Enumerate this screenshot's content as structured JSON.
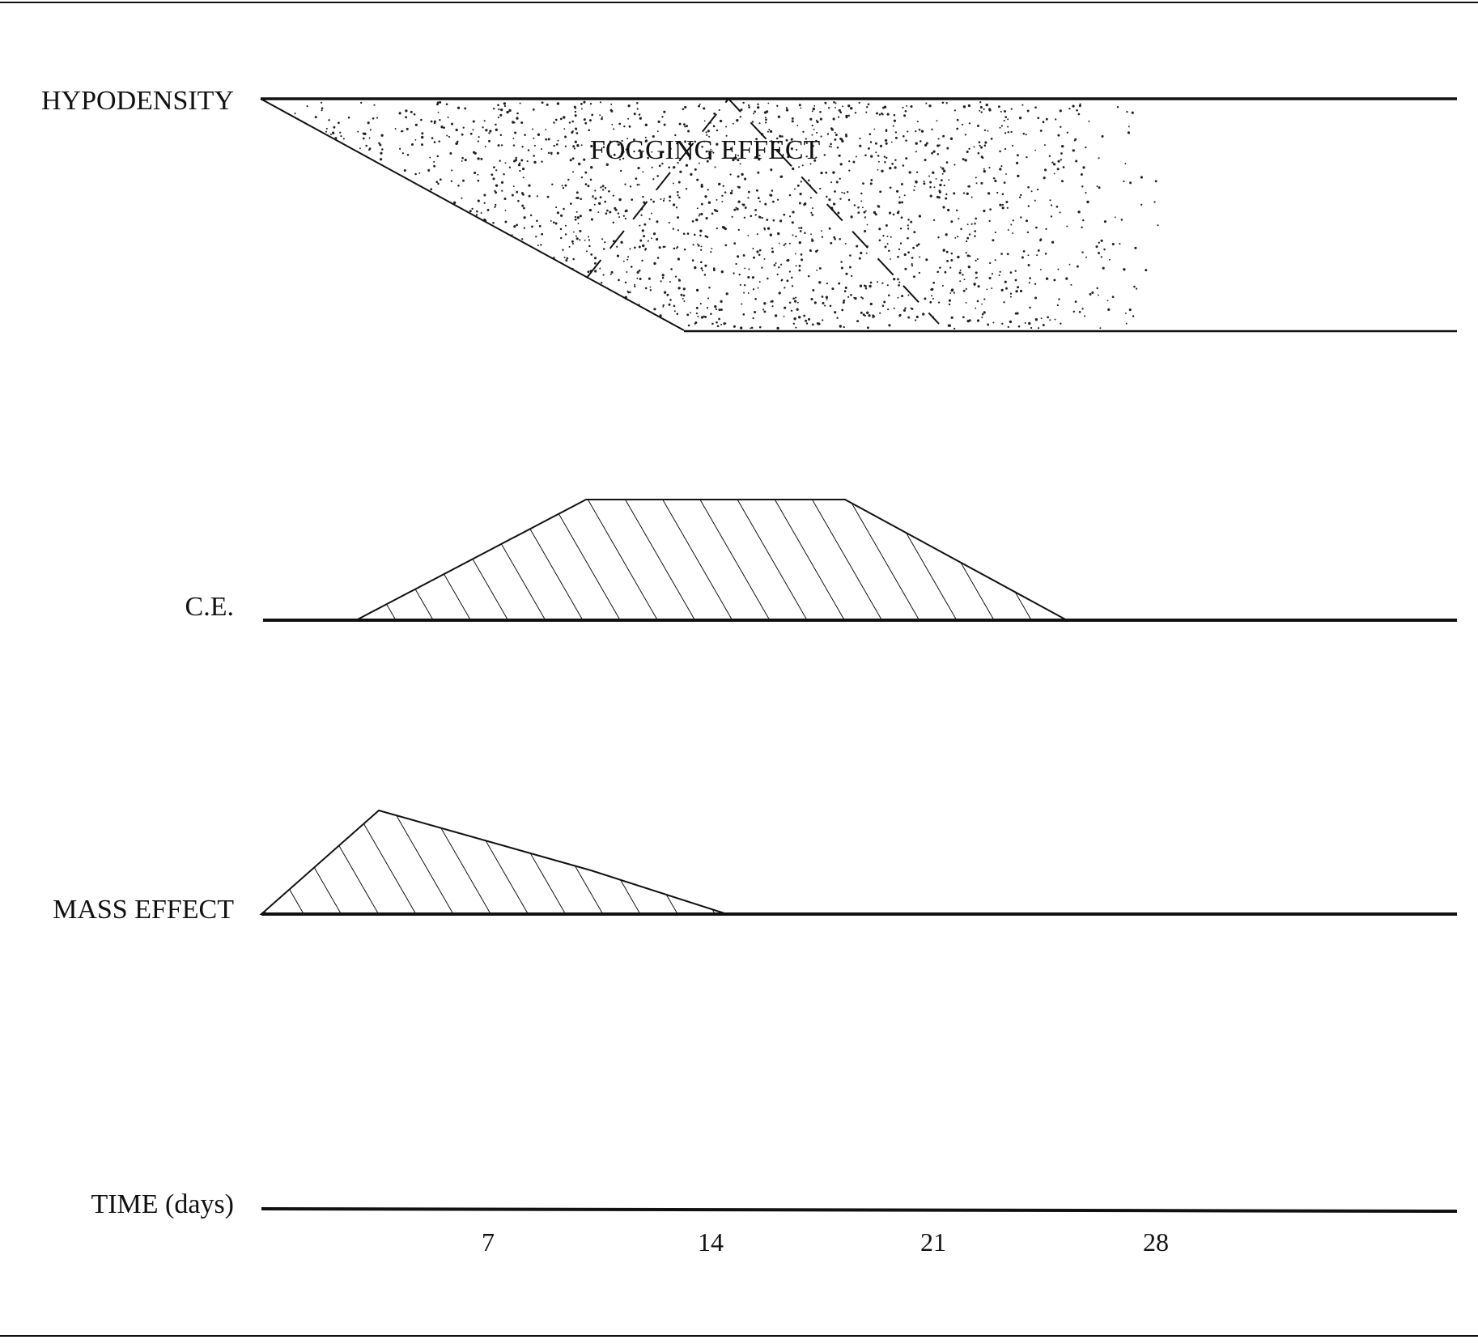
{
  "rows": {
    "hypodensity": {
      "label": "HYPODENSITY",
      "overlay_label": "FOGGING EFFECT"
    },
    "ce": {
      "label": "C.E."
    },
    "mass_effect": {
      "label": "MASS EFFECT"
    },
    "time": {
      "label": "TIME (days)"
    }
  },
  "time_axis": {
    "ticks": [
      "7",
      "14",
      "21",
      "28"
    ]
  },
  "colors": {
    "ink": "#111111",
    "background": "#ffffff"
  }
}
